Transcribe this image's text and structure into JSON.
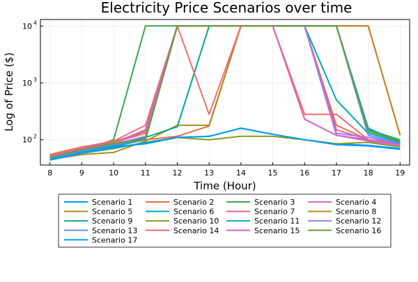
{
  "chart_data": {
    "type": "line",
    "title": "Electricity Price Scenarios over time",
    "xlabel": "Time (Hour)",
    "ylabel": "Log of Price ($)",
    "yscale": "log10",
    "xlim": [
      7.7,
      19.3
    ],
    "ylim": [
      36,
      13000
    ],
    "grid": true,
    "legend_position": "bottom",
    "x": [
      8,
      9,
      10,
      11,
      12,
      13,
      14,
      15,
      16,
      17,
      18,
      19
    ],
    "x_ticks": [
      "8",
      "9",
      "10",
      "11",
      "12",
      "13",
      "14",
      "15",
      "16",
      "17",
      "18",
      "19"
    ],
    "y_ticks": [
      {
        "value": 100,
        "base": "10",
        "exp": "2"
      },
      {
        "value": 1000,
        "base": "10",
        "exp": "3"
      },
      {
        "value": 10000,
        "base": "10",
        "exp": "4"
      }
    ],
    "series": [
      {
        "name": "Scenario 1",
        "color": "#009AFA",
        "values": [
          45,
          60,
          75,
          85,
          110,
          115,
          160,
          125,
          100,
          85,
          80,
          70
        ]
      },
      {
        "name": "Scenario 2",
        "color": "#E36F47",
        "values": [
          55,
          70,
          90,
          100,
          115,
          175,
          10000,
          10000,
          10000,
          180,
          100,
          85
        ]
      },
      {
        "name": "Scenario 3",
        "color": "#3EA44E",
        "values": [
          50,
          65,
          100,
          10000,
          10000,
          10000,
          10000,
          10000,
          10000,
          10000,
          150,
          100
        ]
      },
      {
        "name": "Scenario 4",
        "color": "#C371D2",
        "values": [
          50,
          70,
          85,
          105,
          10000,
          10000,
          10000,
          10000,
          10000,
          120,
          95,
          80
        ]
      },
      {
        "name": "Scenario 5",
        "color": "#AC8E18",
        "values": [
          45,
          55,
          60,
          95,
          180,
          180,
          10000,
          10000,
          10000,
          10000,
          10000,
          120
        ]
      },
      {
        "name": "Scenario 6",
        "color": "#00A9AD",
        "values": [
          48,
          62,
          80,
          100,
          10000,
          10000,
          10000,
          10000,
          10000,
          500,
          130,
          90
        ]
      },
      {
        "name": "Scenario 7",
        "color": "#ED5E93",
        "values": [
          52,
          72,
          90,
          130,
          10000,
          10000,
          10000,
          10000,
          10000,
          150,
          100,
          85
        ]
      },
      {
        "name": "Scenario 8",
        "color": "#C68225",
        "values": [
          55,
          75,
          92,
          140,
          10000,
          10000,
          10000,
          10000,
          10000,
          10000,
          10000,
          120
        ]
      },
      {
        "name": "Scenario 9",
        "color": "#00A98D",
        "values": [
          47,
          63,
          78,
          110,
          170,
          10000,
          10000,
          10000,
          10000,
          10000,
          140,
          95
        ]
      },
      {
        "name": "Scenario 10",
        "color": "#8E971D",
        "values": [
          50,
          58,
          70,
          90,
          110,
          100,
          115,
          115,
          100,
          85,
          90,
          75
        ]
      },
      {
        "name": "Scenario 11",
        "color": "#00A8CB",
        "values": [
          46,
          61,
          76,
          100,
          10000,
          10000,
          10000,
          10000,
          10000,
          10000,
          160,
          90
        ]
      },
      {
        "name": "Scenario 12",
        "color": "#9B7FE9",
        "values": [
          49,
          66,
          84,
          115,
          10000,
          10000,
          10000,
          10000,
          10000,
          130,
          110,
          85
        ]
      },
      {
        "name": "Scenario 13",
        "color": "#618DF6",
        "values": [
          48,
          64,
          82,
          100,
          10000,
          10000,
          10000,
          10000,
          10000,
          10000,
          120,
          85
        ]
      },
      {
        "name": "Scenario 14",
        "color": "#F16C6F",
        "values": [
          53,
          74,
          95,
          180,
          10000,
          280,
          10000,
          10000,
          280,
          280,
          100,
          80
        ]
      },
      {
        "name": "Scenario 15",
        "color": "#DC63BC",
        "values": [
          51,
          69,
          88,
          150,
          10000,
          10000,
          10000,
          10000,
          230,
          120,
          100,
          80
        ]
      },
      {
        "name": "Scenario 16",
        "color": "#6C9E33",
        "values": [
          49,
          67,
          86,
          100,
          10000,
          10000,
          10000,
          10000,
          10000,
          10000,
          140,
          95
        ]
      },
      {
        "name": "Scenario 17",
        "color": "#009AFA",
        "values": [
          44,
          58,
          72,
          88,
          110,
          115,
          160,
          125,
          100,
          82,
          78,
          68
        ]
      }
    ]
  }
}
